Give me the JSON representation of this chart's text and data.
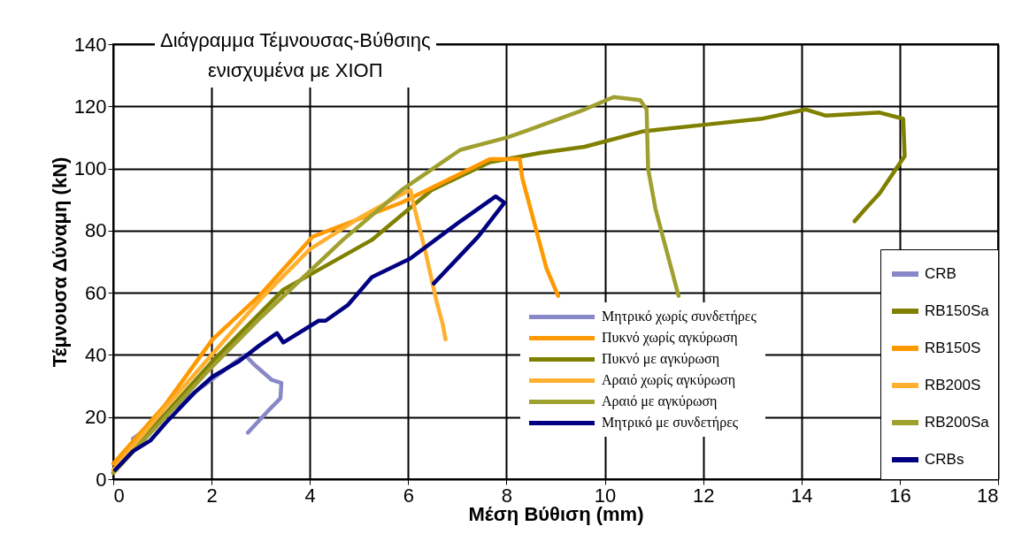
{
  "chart_data": {
    "type": "line",
    "title": [
      "Διάγραμμα Τέμνουσας-Βύθσιης",
      "ενισχυμένα με ΧΙΟΠ"
    ],
    "xlabel": "Μέση Βύθιση (mm)",
    "ylabel": "Τέμνουσα Δύναμη (kN)",
    "xlim": [
      0,
      18
    ],
    "xticks": [
      0,
      2,
      4,
      6,
      8,
      10,
      12,
      14,
      16,
      18
    ],
    "ylim": [
      0,
      140
    ],
    "yticks": [
      0,
      20,
      40,
      60,
      80,
      100,
      120,
      140
    ],
    "grid": true,
    "legend": "bottom right",
    "line_style": "solid",
    "marker": "none",
    "series": [
      {
        "name": "CRB",
        "color": "#8888c8",
        "x": [
          0.4,
          2,
          2.68,
          2.86,
          3.22,
          3.42,
          3.4,
          3.15,
          2.74
        ],
        "values": [
          13,
          32,
          40,
          37,
          32,
          31,
          26,
          22,
          15
        ]
      },
      {
        "name": "RB150Sa",
        "color": "#808000",
        "x": [
          0,
          1.06,
          2.02,
          3.46,
          5.26,
          6.47,
          7.66,
          8.68,
          9.59,
          10.79,
          11.98,
          13.19,
          14.09,
          14.5,
          15.59,
          16.07,
          16.1,
          15.59,
          15.3,
          15.08
        ],
        "values": [
          2,
          21,
          38,
          61,
          77,
          93,
          102,
          105,
          107,
          112,
          114,
          116,
          119,
          117,
          118,
          116,
          104,
          92,
          87,
          83
        ]
      },
      {
        "name": "RB150S",
        "color": "#ff9900",
        "x": [
          0,
          1.06,
          2.02,
          2.97,
          4.05,
          5.86,
          7.66,
          8.27,
          8.32,
          8.81,
          9.05
        ],
        "values": [
          5,
          24,
          45,
          59,
          78,
          89,
          103,
          103,
          97,
          68,
          59
        ]
      },
      {
        "name": "RB200S",
        "color": "#ffb030",
        "x": [
          0,
          1,
          2,
          3,
          4,
          5,
          5.9,
          6.05,
          6.1,
          6.34,
          6.58,
          6.7,
          6.76
        ],
        "values": [
          3,
          22,
          40,
          58,
          74,
          84,
          92,
          93,
          89,
          74,
          57,
          50,
          45
        ]
      },
      {
        "name": "RB200Sa",
        "color": "#a0a030",
        "x": [
          0,
          1,
          2,
          3,
          4.67,
          5.86,
          7.06,
          8.02,
          8.38,
          9.59,
          10.18,
          10.72,
          10.85,
          10.88,
          11.03,
          11.5
        ],
        "values": [
          2,
          19,
          36,
          52,
          77,
          93,
          106,
          110,
          112,
          119,
          123,
          122,
          119,
          100,
          87,
          59
        ]
      },
      {
        "name": "CRBs",
        "color": "#000080",
        "x": [
          0.04,
          0.4,
          0.76,
          1.06,
          1.66,
          2.02,
          2.56,
          2.97,
          3.33,
          3.46,
          4.18,
          4.32,
          4.77,
          5.26,
          6.04,
          7.06,
          7.78,
          7.96,
          7.42,
          6.52
        ],
        "values": [
          3,
          9,
          12.5,
          18,
          28,
          33,
          38,
          43,
          47,
          44,
          51,
          51,
          56,
          65,
          71,
          83,
          91,
          89,
          78,
          63
        ]
      }
    ],
    "annotations": [
      "Μητρικό χωρίς συνδετήρες",
      "Πυκνό χωρίς αγκύρωση",
      "Πυκνό με αγκύρωση",
      "Αραιό χωρίς αγκύρωση",
      "Αραιό με αγκύρωση",
      "Μητρικό με συνδετήρες"
    ]
  }
}
